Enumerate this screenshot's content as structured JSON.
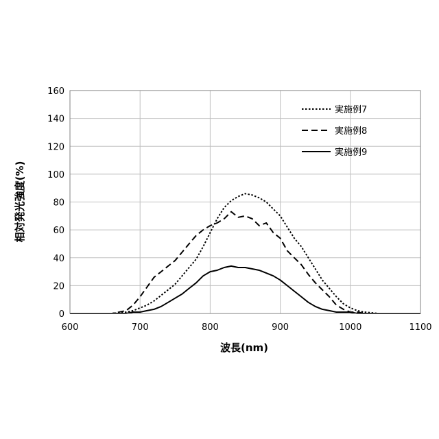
{
  "chart_data": {
    "type": "line",
    "xlabel": "波長(nm)",
    "ylabel": "相対発光強度(%)",
    "xlim": [
      600,
      1100
    ],
    "ylim": [
      0,
      160
    ],
    "x_ticks": [
      "600",
      "700",
      "800",
      "900",
      "1000",
      "1100"
    ],
    "y_ticks": [
      "0",
      "20",
      "40",
      "60",
      "80",
      "100",
      "120",
      "140",
      "160"
    ],
    "grid": true,
    "legend_position": "top-right",
    "series": [
      {
        "name": "実施例7",
        "style": "dotted",
        "x": [
          600,
          620,
          640,
          660,
          680,
          690,
          700,
          710,
          720,
          730,
          740,
          750,
          760,
          770,
          780,
          790,
          800,
          810,
          820,
          830,
          840,
          850,
          860,
          870,
          880,
          890,
          900,
          910,
          920,
          930,
          940,
          950,
          960,
          970,
          980,
          990,
          1000,
          1010,
          1020,
          1040,
          1060,
          1080,
          1100
        ],
        "values": [
          0,
          0,
          0,
          0,
          1,
          2,
          4,
          6,
          9,
          13,
          17,
          21,
          27,
          33,
          39,
          48,
          58,
          68,
          76,
          81,
          84,
          86,
          85,
          83,
          80,
          75,
          70,
          62,
          54,
          48,
          40,
          32,
          24,
          18,
          12,
          7,
          4,
          2,
          1,
          0,
          0,
          0,
          0
        ]
      },
      {
        "name": "実施例8",
        "style": "dashed",
        "x": [
          600,
          620,
          640,
          660,
          680,
          690,
          700,
          710,
          720,
          730,
          740,
          750,
          760,
          770,
          780,
          790,
          800,
          810,
          820,
          830,
          840,
          850,
          860,
          870,
          880,
          890,
          900,
          910,
          920,
          930,
          940,
          950,
          960,
          970,
          980,
          990,
          1000,
          1010,
          1020,
          1040,
          1060,
          1080,
          1100
        ],
        "values": [
          0,
          0,
          0,
          0,
          2,
          6,
          12,
          19,
          26,
          30,
          34,
          38,
          44,
          50,
          56,
          60,
          63,
          65,
          68,
          73,
          69,
          70,
          68,
          63,
          65,
          58,
          54,
          45,
          40,
          35,
          28,
          22,
          17,
          12,
          6,
          3,
          1,
          1,
          0,
          0,
          0,
          0,
          0
        ]
      },
      {
        "name": "実施例9",
        "style": "solid",
        "x": [
          600,
          620,
          640,
          660,
          680,
          690,
          700,
          710,
          720,
          730,
          740,
          750,
          760,
          770,
          780,
          790,
          800,
          810,
          820,
          830,
          840,
          850,
          860,
          870,
          880,
          890,
          900,
          910,
          920,
          930,
          940,
          950,
          960,
          970,
          980,
          990,
          1000,
          1010,
          1020,
          1040,
          1060,
          1080,
          1100
        ],
        "values": [
          0,
          0,
          0,
          0,
          0,
          1,
          1,
          2,
          3,
          5,
          8,
          11,
          14,
          18,
          22,
          27,
          30,
          31,
          33,
          34,
          33,
          33,
          32,
          31,
          29,
          27,
          24,
          20,
          16,
          12,
          8,
          5,
          3,
          2,
          1,
          1,
          1,
          0,
          0,
          0,
          0,
          0,
          0
        ]
      }
    ]
  }
}
